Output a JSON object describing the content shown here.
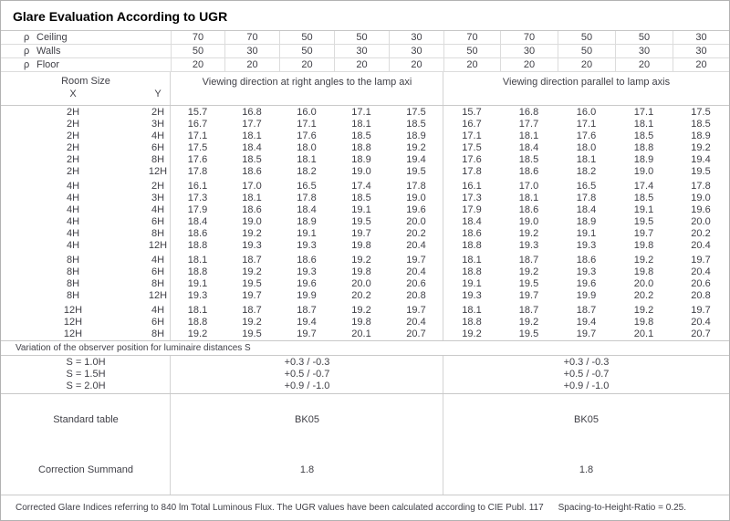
{
  "title": "Glare Evaluation According to UGR",
  "reflectance": {
    "symbol": "ρ",
    "rows": [
      {
        "label": "Ceiling",
        "left": [
          "70",
          "70",
          "50",
          "50",
          "30"
        ],
        "right": [
          "70",
          "70",
          "50",
          "50",
          "30"
        ]
      },
      {
        "label": "Walls",
        "left": [
          "50",
          "30",
          "50",
          "30",
          "30"
        ],
        "right": [
          "50",
          "30",
          "50",
          "30",
          "30"
        ]
      },
      {
        "label": "Floor",
        "left": [
          "20",
          "20",
          "20",
          "20",
          "20"
        ],
        "right": [
          "20",
          "20",
          "20",
          "20",
          "20"
        ]
      }
    ]
  },
  "headers": {
    "room_size": "Room Size",
    "x": "X",
    "y": "Y",
    "left_group": "Viewing direction at right angles to the lamp axi",
    "right_group": "Viewing direction parallel to lamp axis"
  },
  "ugr_table": {
    "blocks": [
      {
        "rows": [
          {
            "x": "2H",
            "y": "2H",
            "left": [
              "15.7",
              "16.8",
              "16.0",
              "17.1",
              "17.5"
            ],
            "right": [
              "15.7",
              "16.8",
              "16.0",
              "17.1",
              "17.5"
            ]
          },
          {
            "x": "2H",
            "y": "3H",
            "left": [
              "16.7",
              "17.7",
              "17.1",
              "18.1",
              "18.5"
            ],
            "right": [
              "16.7",
              "17.7",
              "17.1",
              "18.1",
              "18.5"
            ]
          },
          {
            "x": "2H",
            "y": "4H",
            "left": [
              "17.1",
              "18.1",
              "17.6",
              "18.5",
              "18.9"
            ],
            "right": [
              "17.1",
              "18.1",
              "17.6",
              "18.5",
              "18.9"
            ]
          },
          {
            "x": "2H",
            "y": "6H",
            "left": [
              "17.5",
              "18.4",
              "18.0",
              "18.8",
              "19.2"
            ],
            "right": [
              "17.5",
              "18.4",
              "18.0",
              "18.8",
              "19.2"
            ]
          },
          {
            "x": "2H",
            "y": "8H",
            "left": [
              "17.6",
              "18.5",
              "18.1",
              "18.9",
              "19.4"
            ],
            "right": [
              "17.6",
              "18.5",
              "18.1",
              "18.9",
              "19.4"
            ]
          },
          {
            "x": "2H",
            "y": "12H",
            "left": [
              "17.8",
              "18.6",
              "18.2",
              "19.0",
              "19.5"
            ],
            "right": [
              "17.8",
              "18.6",
              "18.2",
              "19.0",
              "19.5"
            ]
          }
        ]
      },
      {
        "rows": [
          {
            "x": "4H",
            "y": "2H",
            "left": [
              "16.1",
              "17.0",
              "16.5",
              "17.4",
              "17.8"
            ],
            "right": [
              "16.1",
              "17.0",
              "16.5",
              "17.4",
              "17.8"
            ]
          },
          {
            "x": "4H",
            "y": "3H",
            "left": [
              "17.3",
              "18.1",
              "17.8",
              "18.5",
              "19.0"
            ],
            "right": [
              "17.3",
              "18.1",
              "17.8",
              "18.5",
              "19.0"
            ]
          },
          {
            "x": "4H",
            "y": "4H",
            "left": [
              "17.9",
              "18.6",
              "18.4",
              "19.1",
              "19.6"
            ],
            "right": [
              "17.9",
              "18.6",
              "18.4",
              "19.1",
              "19.6"
            ]
          },
          {
            "x": "4H",
            "y": "6H",
            "left": [
              "18.4",
              "19.0",
              "18.9",
              "19.5",
              "20.0"
            ],
            "right": [
              "18.4",
              "19.0",
              "18.9",
              "19.5",
              "20.0"
            ]
          },
          {
            "x": "4H",
            "y": "8H",
            "left": [
              "18.6",
              "19.2",
              "19.1",
              "19.7",
              "20.2"
            ],
            "right": [
              "18.6",
              "19.2",
              "19.1",
              "19.7",
              "20.2"
            ]
          },
          {
            "x": "4H",
            "y": "12H",
            "left": [
              "18.8",
              "19.3",
              "19.3",
              "19.8",
              "20.4"
            ],
            "right": [
              "18.8",
              "19.3",
              "19.3",
              "19.8",
              "20.4"
            ]
          }
        ]
      },
      {
        "rows": [
          {
            "x": "8H",
            "y": "4H",
            "left": [
              "18.1",
              "18.7",
              "18.6",
              "19.2",
              "19.7"
            ],
            "right": [
              "18.1",
              "18.7",
              "18.6",
              "19.2",
              "19.7"
            ]
          },
          {
            "x": "8H",
            "y": "6H",
            "left": [
              "18.8",
              "19.2",
              "19.3",
              "19.8",
              "20.4"
            ],
            "right": [
              "18.8",
              "19.2",
              "19.3",
              "19.8",
              "20.4"
            ]
          },
          {
            "x": "8H",
            "y": "8H",
            "left": [
              "19.1",
              "19.5",
              "19.6",
              "20.0",
              "20.6"
            ],
            "right": [
              "19.1",
              "19.5",
              "19.6",
              "20.0",
              "20.6"
            ]
          },
          {
            "x": "8H",
            "y": "12H",
            "left": [
              "19.3",
              "19.7",
              "19.9",
              "20.2",
              "20.8"
            ],
            "right": [
              "19.3",
              "19.7",
              "19.9",
              "20.2",
              "20.8"
            ]
          }
        ]
      },
      {
        "rows": [
          {
            "x": "12H",
            "y": "4H",
            "left": [
              "18.1",
              "18.7",
              "18.7",
              "19.2",
              "19.7"
            ],
            "right": [
              "18.1",
              "18.7",
              "18.7",
              "19.2",
              "19.7"
            ]
          },
          {
            "x": "12H",
            "y": "6H",
            "left": [
              "18.8",
              "19.2",
              "19.4",
              "19.8",
              "20.4"
            ],
            "right": [
              "18.8",
              "19.2",
              "19.4",
              "19.8",
              "20.4"
            ]
          },
          {
            "x": "12H",
            "y": "8H",
            "left": [
              "19.2",
              "19.5",
              "19.7",
              "20.1",
              "20.7"
            ],
            "right": [
              "19.2",
              "19.5",
              "19.7",
              "20.1",
              "20.7"
            ]
          }
        ]
      }
    ]
  },
  "variation": {
    "caption": "Variation of the observer position for luminaire distances S",
    "rows": [
      {
        "label": "S = 1.0H",
        "left": "+0.3 / -0.3",
        "right": "+0.3 / -0.3"
      },
      {
        "label": "S = 1.5H",
        "left": "+0.5 / -0.7",
        "right": "+0.5 / -0.7"
      },
      {
        "label": "S = 2.0H",
        "left": "+0.9 / -1.0",
        "right": "+0.9 / -1.0"
      }
    ]
  },
  "summary": {
    "rows": [
      {
        "label": "Standard table",
        "left": "BK05",
        "right": "BK05"
      },
      {
        "label": "Correction Summand",
        "left": "1.8",
        "right": "1.8"
      }
    ]
  },
  "footer": {
    "text": "Corrected Glare Indices referring to 840 lm Total Luminous Flux. The UGR values have been calculated according to CIE Publ. 117",
    "ratio": "Spacing-to-Height-Ratio = 0.25."
  },
  "colors": {
    "outer_border": "#b2b2b2",
    "grid_line": "#dcdcdc",
    "section_line": "#c9c9c9",
    "text": "#3f3f46",
    "title_text": "#000000",
    "background": "#ffffff"
  }
}
